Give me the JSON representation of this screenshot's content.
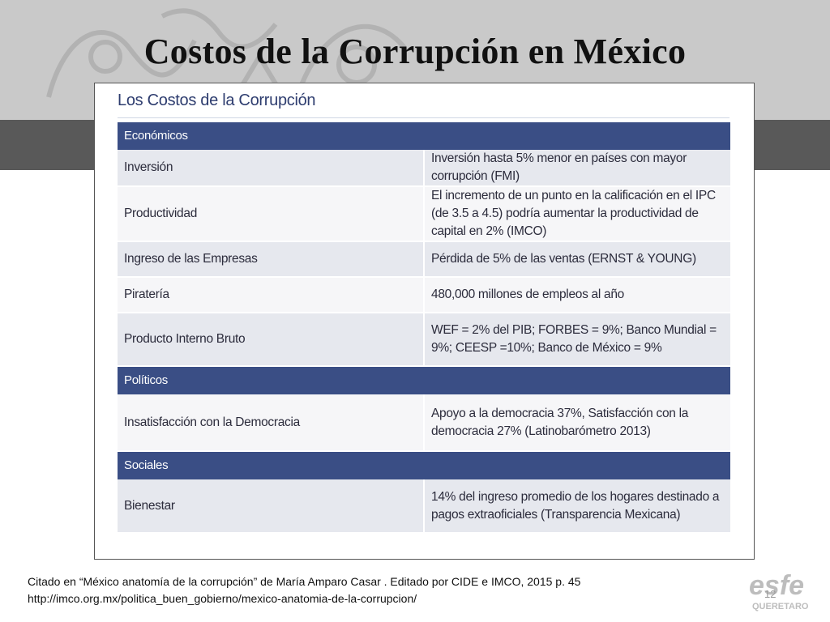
{
  "slide": {
    "title": "Costos de la Corrupción en México",
    "page_number": "12"
  },
  "figure": {
    "title": "Los Costos de la Corrupción",
    "sections": [
      {
        "header": "Económicos",
        "rows": [
          {
            "label": "Inversión",
            "value": "Inversión hasta 5% menor en países con mayor corrupción (FMI)"
          },
          {
            "label": "Productividad",
            "value": "El incremento de un punto en la calificación en el IPC (de 3.5 a 4.5) podría aumentar la productividad de capital en 2% (IMCO)"
          },
          {
            "label": "Ingreso de las Empresas",
            "value": "Pérdida de 5% de las ventas (ERNST & YOUNG)"
          },
          {
            "label": "Piratería",
            "value": "480,000 millones de empleos al año"
          },
          {
            "label": "Producto Interno Bruto",
            "value": "WEF = 2% del PIB; FORBES = 9%; Banco Mundial = 9%; CEESP =10%; Banco de México = 9%"
          }
        ]
      },
      {
        "header": "Políticos",
        "rows": [
          {
            "label": "Insatisfacción con la Democracia",
            "value": "Apoyo a la democracia 37%, Satisfacción con la democracia 27% (Latinobarómetro 2013)"
          }
        ]
      },
      {
        "header": "Sociales",
        "rows": [
          {
            "label": "Bienestar",
            "value": "14% del ingreso promedio de los hogares destinado a pagos extraoficiales (Transparencia Mexicana)"
          }
        ]
      }
    ]
  },
  "citation": {
    "line1": "Citado en “México anatomía de la corrupción” de  María  Amparo Casar . Editado por CIDE e IMCO, 2015 p. 45",
    "line2": "http://imco.org.mx/politica_buen_gobierno/mexico-anatomia-de-la-corrupcion/"
  },
  "logo": {
    "text": "esfe",
    "subtext": "QUERETARO",
    "color": "#bdbdbd"
  },
  "colors": {
    "section_header": "#3a4e85",
    "band_light": "#c9c9c9",
    "band_dark": "#595959"
  }
}
